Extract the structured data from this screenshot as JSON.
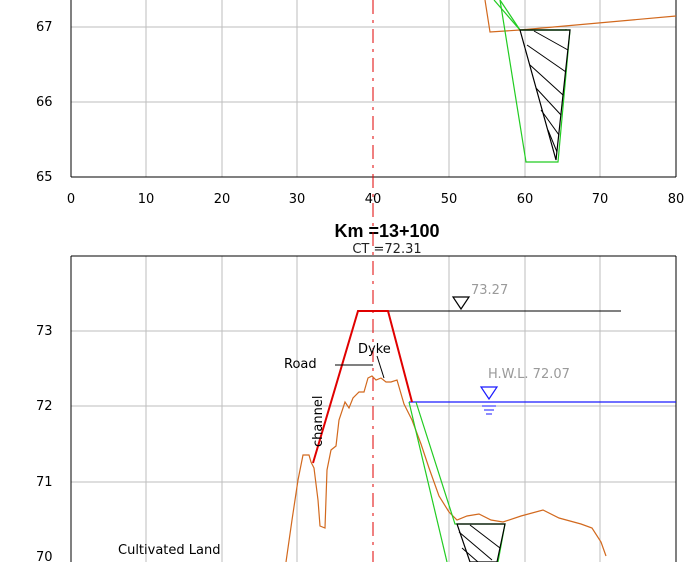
{
  "upper_section": {
    "y_ticks": [
      "65",
      "66",
      "67"
    ],
    "x_ticks": [
      "0",
      "10",
      "20",
      "30",
      "40",
      "50",
      "60",
      "70",
      "80"
    ]
  },
  "lower_section": {
    "title": "Km =13+100",
    "ct_label": "CT =72.31",
    "y_ticks": [
      "70",
      "71",
      "72",
      "73"
    ],
    "crest_level_label": "73.27",
    "hwl_label": "H.W.L. 72.07",
    "annotations": {
      "road": "Road",
      "dyke": "Dyke",
      "channel": "channel",
      "cultivated_land": "Cultivated Land"
    }
  },
  "colors": {
    "ground_profile": "#d2691e",
    "design_section": "#e00000",
    "side_slope": "#22cc22",
    "water_level": "#1a1aff",
    "centerline": "#e00000",
    "grid": "#bdbdbd"
  }
}
